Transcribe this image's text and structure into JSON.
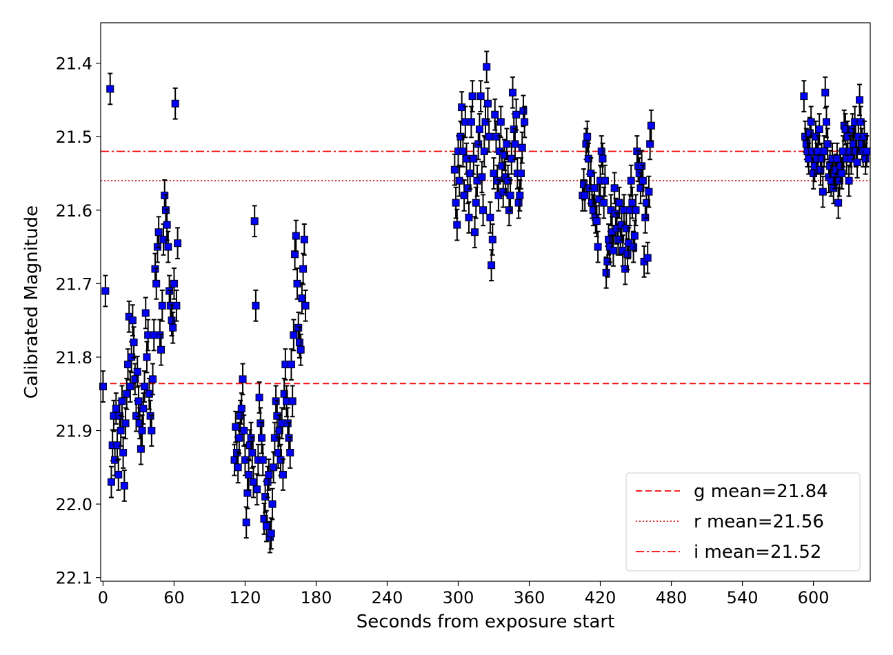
{
  "chart_data": {
    "type": "scatter",
    "title": "",
    "xlabel": "Seconds from exposure start",
    "ylabel": "Calibrated Magnitude",
    "xlim": [
      -2,
      648
    ],
    "ylim": [
      22.105,
      21.345
    ],
    "y_inverted": true,
    "grid": false,
    "legend_position": "lower-right",
    "x_ticks": [
      0,
      60,
      120,
      180,
      240,
      300,
      360,
      420,
      480,
      540,
      600
    ],
    "y_ticks": [
      21.4,
      21.5,
      21.6,
      21.7,
      21.8,
      21.9,
      22.0,
      22.1
    ],
    "x_tick_labels": [
      "0",
      "60",
      "120",
      "180",
      "240",
      "300",
      "360",
      "420",
      "480",
      "540",
      "600"
    ],
    "y_tick_labels": [
      "21.4",
      "21.5",
      "21.6",
      "21.7",
      "21.8",
      "21.9",
      "22.0",
      "22.1"
    ],
    "marker_color": "#0000ff",
    "errorbar_color": "#000000",
    "reference_color": "#ff0000",
    "reference_lines": [
      {
        "name": "g mean=21.84",
        "value": 21.836,
        "style": "dashed"
      },
      {
        "name": "r mean=21.56",
        "value": 21.56,
        "style": "dotted"
      },
      {
        "name": "i mean=21.52",
        "value": 21.52,
        "style": "dashdot"
      }
    ],
    "series": [
      {
        "points": [
          [
            0,
            21.84
          ],
          [
            2,
            21.71
          ],
          [
            6,
            21.435
          ],
          [
            7,
            21.97
          ],
          [
            8,
            21.92
          ],
          [
            9,
            21.88
          ],
          [
            10,
            21.94
          ],
          [
            11,
            21.87
          ],
          [
            12,
            21.92
          ],
          [
            13,
            21.96
          ],
          [
            14,
            21.88
          ],
          [
            15,
            21.9
          ],
          [
            16,
            21.86
          ],
          [
            17,
            21.93
          ],
          [
            18,
            21.975
          ],
          [
            19,
            21.89
          ],
          [
            20,
            21.85
          ],
          [
            21,
            21.81
          ],
          [
            22,
            21.745
          ],
          [
            23,
            21.84
          ],
          [
            24,
            21.8
          ],
          [
            25,
            21.75
          ],
          [
            26,
            21.78
          ],
          [
            27,
            21.83
          ],
          [
            28,
            21.88
          ],
          [
            29,
            21.82
          ],
          [
            30,
            21.86
          ],
          [
            31,
            21.89
          ],
          [
            32,
            21.925
          ],
          [
            33,
            21.9
          ],
          [
            34,
            21.87
          ],
          [
            35,
            21.84
          ],
          [
            36,
            21.74
          ],
          [
            37,
            21.8
          ],
          [
            38,
            21.77
          ],
          [
            39,
            21.85
          ],
          [
            40,
            21.88
          ],
          [
            41,
            21.9
          ],
          [
            42,
            21.83
          ],
          [
            43,
            21.77
          ],
          [
            44,
            21.68
          ],
          [
            45,
            21.7
          ],
          [
            46,
            21.65
          ],
          [
            47,
            21.63
          ],
          [
            48,
            21.77
          ],
          [
            49,
            21.79
          ],
          [
            50,
            21.73
          ],
          [
            51,
            21.64
          ],
          [
            52,
            21.58
          ],
          [
            53,
            21.6
          ],
          [
            54,
            21.62
          ],
          [
            55,
            21.65
          ],
          [
            56,
            21.71
          ],
          [
            57,
            21.73
          ],
          [
            58,
            21.75
          ],
          [
            59,
            21.76
          ],
          [
            60,
            21.7
          ],
          [
            61,
            21.455
          ],
          [
            62,
            21.73
          ],
          [
            63,
            21.645
          ],
          [
            111,
            21.94
          ],
          [
            112,
            21.895
          ],
          [
            113,
            21.93
          ],
          [
            114,
            21.95
          ],
          [
            115,
            21.91
          ],
          [
            116,
            21.88
          ],
          [
            117,
            21.87
          ],
          [
            118,
            21.83
          ],
          [
            119,
            21.9
          ],
          [
            120,
            21.94
          ],
          [
            121,
            22.025
          ],
          [
            122,
            21.985
          ],
          [
            123,
            21.96
          ],
          [
            124,
            21.92
          ],
          [
            125,
            21.91
          ],
          [
            126,
            21.93
          ],
          [
            127,
            21.97
          ],
          [
            128,
            21.615
          ],
          [
            129,
            21.73
          ],
          [
            130,
            21.98
          ],
          [
            131,
            21.94
          ],
          [
            132,
            21.855
          ],
          [
            133,
            21.89
          ],
          [
            134,
            21.91
          ],
          [
            135,
            21.94
          ],
          [
            136,
            22.02
          ],
          [
            137,
            21.99
          ],
          [
            138,
            22.03
          ],
          [
            139,
            21.97
          ],
          [
            140,
            21.96
          ],
          [
            141,
            22.045
          ],
          [
            142,
            22.04
          ],
          [
            143,
            22.0
          ],
          [
            144,
            21.95
          ],
          [
            145,
            21.91
          ],
          [
            146,
            21.86
          ],
          [
            147,
            21.88
          ],
          [
            148,
            21.93
          ],
          [
            149,
            21.9
          ],
          [
            150,
            21.94
          ],
          [
            151,
            21.89
          ],
          [
            152,
            21.96
          ],
          [
            153,
            21.85
          ],
          [
            154,
            21.81
          ],
          [
            155,
            21.86
          ],
          [
            156,
            21.89
          ],
          [
            157,
            21.91
          ],
          [
            158,
            21.93
          ],
          [
            159,
            21.81
          ],
          [
            160,
            21.86
          ],
          [
            161,
            21.77
          ],
          [
            162,
            21.66
          ],
          [
            163,
            21.635
          ],
          [
            164,
            21.7
          ],
          [
            165,
            21.76
          ],
          [
            166,
            21.78
          ],
          [
            167,
            21.79
          ],
          [
            168,
            21.72
          ],
          [
            169,
            21.68
          ],
          [
            170,
            21.64
          ],
          [
            171,
            21.73
          ],
          [
            297,
            21.545
          ],
          [
            298,
            21.59
          ],
          [
            299,
            21.62
          ],
          [
            300,
            21.52
          ],
          [
            301,
            21.56
          ],
          [
            302,
            21.5
          ],
          [
            303,
            21.46
          ],
          [
            304,
            21.52
          ],
          [
            305,
            21.58
          ],
          [
            306,
            21.48
          ],
          [
            307,
            21.53
          ],
          [
            308,
            21.57
          ],
          [
            309,
            21.61
          ],
          [
            310,
            21.55
          ],
          [
            311,
            21.48
          ],
          [
            312,
            21.445
          ],
          [
            313,
            21.53
          ],
          [
            314,
            21.63
          ],
          [
            315,
            21.59
          ],
          [
            316,
            21.56
          ],
          [
            317,
            21.51
          ],
          [
            318,
            21.49
          ],
          [
            319,
            21.445
          ],
          [
            320,
            21.555
          ],
          [
            321,
            21.6
          ],
          [
            322,
            21.52
          ],
          [
            323,
            21.48
          ],
          [
            324,
            21.405
          ],
          [
            325,
            21.455
          ],
          [
            326,
            21.5
          ],
          [
            327,
            21.61
          ],
          [
            328,
            21.675
          ],
          [
            329,
            21.64
          ],
          [
            330,
            21.55
          ],
          [
            331,
            21.47
          ],
          [
            332,
            21.5
          ],
          [
            333,
            21.56
          ],
          [
            334,
            21.58
          ],
          [
            335,
            21.52
          ],
          [
            336,
            21.48
          ],
          [
            337,
            21.54
          ],
          [
            338,
            21.575
          ],
          [
            339,
            21.525
          ],
          [
            340,
            21.555
          ],
          [
            341,
            21.51
          ],
          [
            342,
            21.56
          ],
          [
            343,
            21.6
          ],
          [
            344,
            21.58
          ],
          [
            345,
            21.53
          ],
          [
            346,
            21.44
          ],
          [
            347,
            21.49
          ],
          [
            348,
            21.51
          ],
          [
            349,
            21.47
          ],
          [
            350,
            21.55
          ],
          [
            351,
            21.59
          ],
          [
            352,
            21.58
          ],
          [
            353,
            21.55
          ],
          [
            354,
            21.515
          ],
          [
            355,
            21.465
          ],
          [
            356,
            21.48
          ],
          [
            405,
            21.58
          ],
          [
            406,
            21.565
          ],
          [
            407,
            21.58
          ],
          [
            408,
            21.51
          ],
          [
            409,
            21.5
          ],
          [
            410,
            21.53
          ],
          [
            411,
            21.57
          ],
          [
            412,
            21.55
          ],
          [
            413,
            21.59
          ],
          [
            414,
            21.6
          ],
          [
            415,
            21.57
          ],
          [
            416,
            21.61
          ],
          [
            417,
            21.615
          ],
          [
            418,
            21.65
          ],
          [
            419,
            21.585
          ],
          [
            420,
            21.56
          ],
          [
            421,
            21.52
          ],
          [
            422,
            21.53
          ],
          [
            423,
            21.59
          ],
          [
            424,
            21.56
          ],
          [
            425,
            21.685
          ],
          [
            426,
            21.67
          ],
          [
            427,
            21.64
          ],
          [
            428,
            21.65
          ],
          [
            429,
            21.6
          ],
          [
            430,
            21.63
          ],
          [
            431,
            21.655
          ],
          [
            432,
            21.57
          ],
          [
            433,
            21.605
          ],
          [
            434,
            21.625
          ],
          [
            435,
            21.64
          ],
          [
            436,
            21.59
          ],
          [
            437,
            21.64
          ],
          [
            438,
            21.62
          ],
          [
            439,
            21.655
          ],
          [
            440,
            21.6
          ],
          [
            441,
            21.68
          ],
          [
            442,
            21.625
          ],
          [
            443,
            21.66
          ],
          [
            444,
            21.645
          ],
          [
            445,
            21.6
          ],
          [
            446,
            21.56
          ],
          [
            447,
            21.59
          ],
          [
            448,
            21.65
          ],
          [
            449,
            21.635
          ],
          [
            450,
            21.6
          ],
          [
            451,
            21.52
          ],
          [
            452,
            21.54
          ],
          [
            453,
            21.55
          ],
          [
            454,
            21.57
          ],
          [
            455,
            21.54
          ],
          [
            456,
            21.56
          ],
          [
            457,
            21.67
          ],
          [
            458,
            21.61
          ],
          [
            459,
            21.59
          ],
          [
            460,
            21.665
          ],
          [
            461,
            21.575
          ],
          [
            462,
            21.51
          ],
          [
            463,
            21.485
          ],
          [
            592,
            21.445
          ],
          [
            593,
            21.5
          ],
          [
            594,
            21.51
          ],
          [
            595,
            21.52
          ],
          [
            596,
            21.53
          ],
          [
            597,
            21.495
          ],
          [
            598,
            21.48
          ],
          [
            599,
            21.52
          ],
          [
            600,
            21.55
          ],
          [
            601,
            21.54
          ],
          [
            602,
            21.5
          ],
          [
            603,
            21.53
          ],
          [
            604,
            21.52
          ],
          [
            605,
            21.49
          ],
          [
            606,
            21.545
          ],
          [
            607,
            21.53
          ],
          [
            608,
            21.575
          ],
          [
            609,
            21.52
          ],
          [
            610,
            21.44
          ],
          [
            611,
            21.48
          ],
          [
            612,
            21.51
          ],
          [
            613,
            21.555
          ],
          [
            614,
            21.54
          ],
          [
            615,
            21.56
          ],
          [
            616,
            21.53
          ],
          [
            617,
            21.57
          ],
          [
            618,
            21.55
          ],
          [
            619,
            21.545
          ],
          [
            620,
            21.53
          ],
          [
            621,
            21.59
          ],
          [
            622,
            21.56
          ],
          [
            623,
            21.54
          ],
          [
            624,
            21.55
          ],
          [
            625,
            21.52
          ],
          [
            626,
            21.485
          ],
          [
            627,
            21.49
          ],
          [
            628,
            21.53
          ],
          [
            629,
            21.5
          ],
          [
            630,
            21.56
          ],
          [
            631,
            21.52
          ],
          [
            632,
            21.53
          ],
          [
            633,
            21.49
          ],
          [
            634,
            21.51
          ],
          [
            635,
            21.48
          ],
          [
            636,
            21.52
          ],
          [
            637,
            21.535
          ],
          [
            638,
            21.5
          ],
          [
            639,
            21.45
          ],
          [
            640,
            21.48
          ],
          [
            641,
            21.51
          ],
          [
            642,
            21.52
          ],
          [
            643,
            21.5
          ],
          [
            644,
            21.53
          ],
          [
            645,
            21.52
          ]
        ],
        "yerr": 0.021
      }
    ]
  }
}
